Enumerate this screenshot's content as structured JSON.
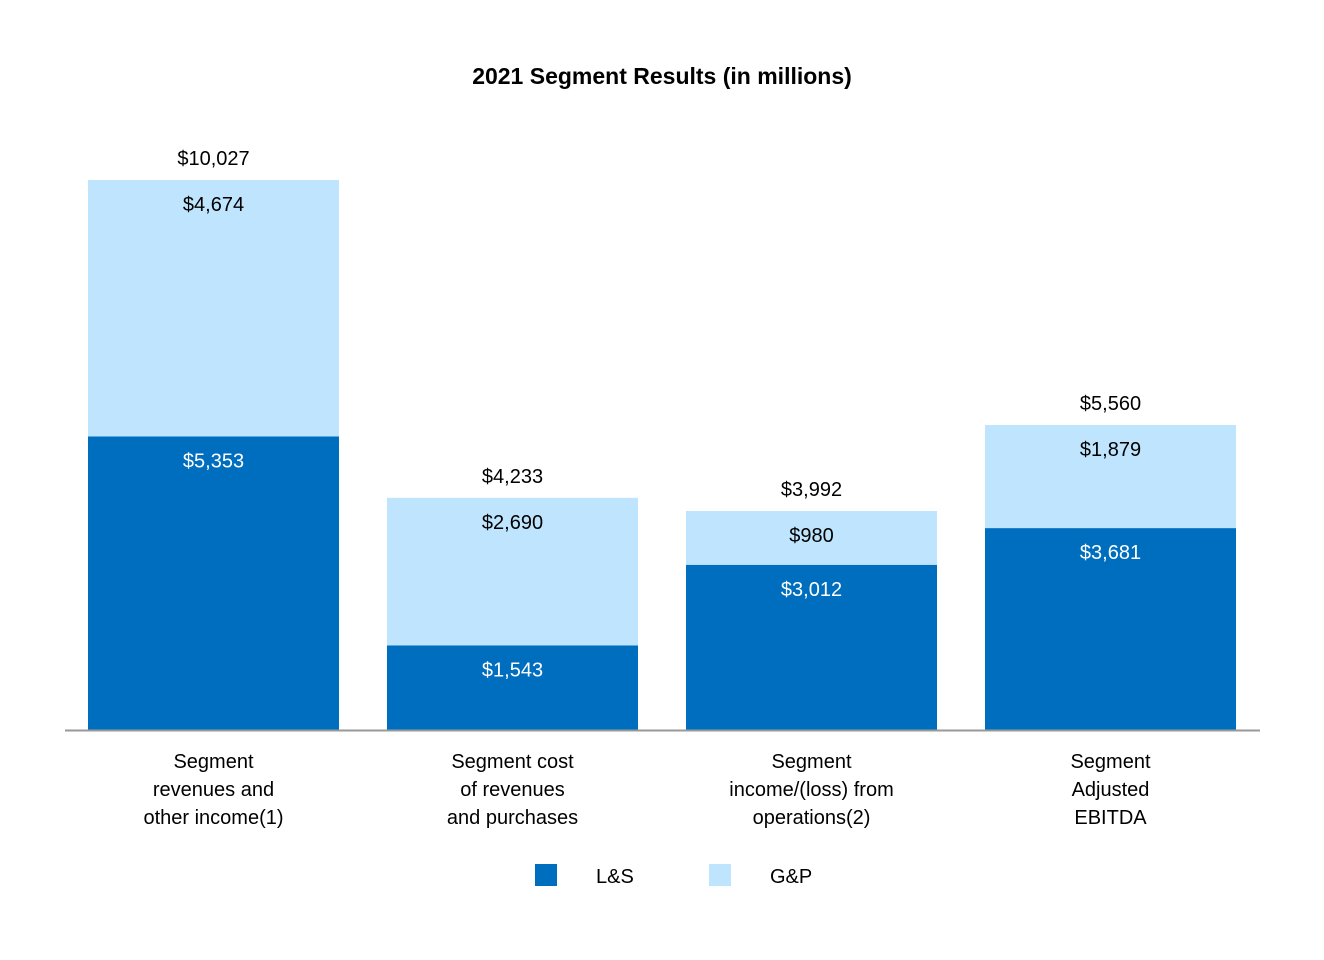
{
  "chart_data": {
    "type": "bar",
    "stacked": true,
    "title": "2021 Segment Results (in millions)",
    "xlabel": "",
    "ylabel": "",
    "grid": false,
    "legend_placement": "bottom-center",
    "categories": [
      [
        "Segment",
        "revenues and",
        "other income(1)"
      ],
      [
        "Segment cost",
        "of revenues",
        "and purchases"
      ],
      [
        "Segment",
        "income/(loss) from",
        "operations(2)"
      ],
      [
        "Segment",
        "Adjusted",
        "EBITDA"
      ]
    ],
    "series": [
      {
        "name": "L&S",
        "color": "#006EBF",
        "label_color": "#FFFFFF",
        "values": [
          5353,
          1543,
          3012,
          3681
        ],
        "labels": [
          "$5,353",
          "$1,543",
          "$3,012",
          "$3,681"
        ]
      },
      {
        "name": "G&P",
        "color": "#BFE4FD",
        "label_color": "#000000",
        "values": [
          4674,
          2690,
          980,
          1879
        ],
        "labels": [
          "$4,674",
          "$2,690",
          "$980",
          "$1,879"
        ]
      }
    ],
    "totals": [
      10027,
      4233,
      3992,
      5560
    ],
    "total_labels": [
      "$10,027",
      "$4,233",
      "$3,992",
      "$5,560"
    ],
    "ylim": [
      0,
      10027
    ]
  }
}
